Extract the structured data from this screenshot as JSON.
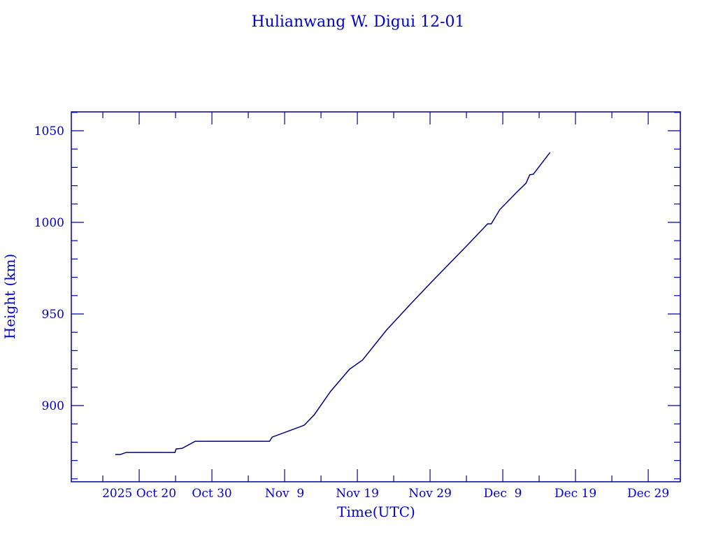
{
  "chart_data": {
    "type": "line",
    "title": "Hulianwang W. Digui 12-01",
    "xlabel": "Time(UTC)",
    "ylabel": "Height (km)",
    "xlim": [
      "2025-10-10T16:00:00Z",
      "2026-01-02T10:00:00Z"
    ],
    "ylim": [
      858.4,
      1060.3
    ],
    "grid": false,
    "x_ticks": [
      {
        "date": "2025-10-20T00:00:00Z",
        "label": "2025 Oct 20"
      },
      {
        "date": "2025-10-30T00:00:00Z",
        "label": "Oct 30"
      },
      {
        "date": "2025-11-09T00:00:00Z",
        "label": "Nov  9"
      },
      {
        "date": "2025-11-19T00:00:00Z",
        "label": "Nov 19"
      },
      {
        "date": "2025-11-29T00:00:00Z",
        "label": "Nov 29"
      },
      {
        "date": "2025-12-09T00:00:00Z",
        "label": "Dec  9"
      },
      {
        "date": "2025-12-19T00:00:00Z",
        "label": "Dec 19"
      },
      {
        "date": "2025-12-29T00:00:00Z",
        "label": "Dec 29"
      }
    ],
    "y_ticks": [
      900,
      950,
      1000,
      1050
    ],
    "colors": {
      "line": "#000080",
      "axis": "#0000a0",
      "text": "#0000c8"
    },
    "series": [
      {
        "x": [
          "2025-10-16T17:00:00Z",
          "2025-10-17T10:00:00Z",
          "2025-10-18T05:00:00Z",
          "2025-10-24T22:00:00Z",
          "2025-10-25T02:00:00Z",
          "2025-10-25T22:00:00Z",
          "2025-10-27T17:00:00Z",
          "2025-11-06T22:00:00Z",
          "2025-11-07T07:00:00Z",
          "2025-11-11T05:00:00Z",
          "2025-11-11T17:00:00Z",
          "2025-11-13T02:00:00Z",
          "2025-11-15T07:00:00Z",
          "2025-11-17T22:00:00Z",
          "2025-11-19T17:00:00Z",
          "2025-11-23T00:00:00Z",
          "2025-11-26T07:00:00Z",
          "2025-11-29T12:00:00Z",
          "2025-12-04T07:00:00Z",
          "2025-12-06T22:00:00Z",
          "2025-12-07T10:00:00Z",
          "2025-12-08T14:00:00Z",
          "2025-12-11T00:00:00Z",
          "2025-12-12T05:00:00Z",
          "2025-12-12T17:00:00Z",
          "2025-12-13T05:00:00Z",
          "2025-12-15T12:00:00Z"
        ],
        "y": [
          873.3,
          873.3,
          874.4,
          874.4,
          876.3,
          876.7,
          880.5,
          880.5,
          882.8,
          888.5,
          889.3,
          895.0,
          907.6,
          919.8,
          924.8,
          941.2,
          955.3,
          968.7,
          988.2,
          999.2,
          999.2,
          1006.9,
          1016.8,
          1021.4,
          1026.0,
          1026.3,
          1038.2
        ]
      }
    ]
  }
}
